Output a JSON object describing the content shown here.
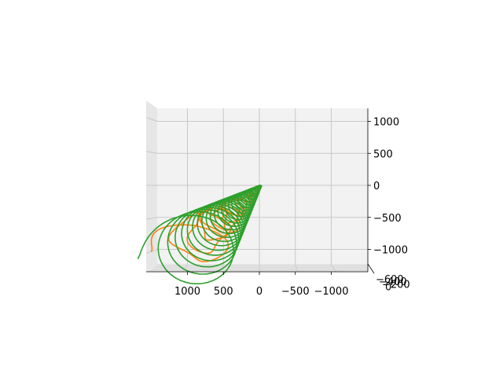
{
  "chart_data": {
    "type": "line",
    "projection": "3d",
    "title": "",
    "xlabel": "",
    "ylabel": "",
    "zlabel": "",
    "grid": true,
    "x_axis": {
      "ticks": [
        {
          "value": 1000,
          "label": "1000"
        },
        {
          "value": 500,
          "label": "500"
        },
        {
          "value": 0,
          "label": "0"
        },
        {
          "value": -500,
          "label": "−500"
        },
        {
          "value": -1000,
          "label": "−1000"
        }
      ],
      "range": [
        -1550,
        1550
      ],
      "inverted": true
    },
    "z_axis": {
      "ticks": [
        {
          "value": 1000,
          "label": "1000"
        },
        {
          "value": 500,
          "label": "500"
        },
        {
          "value": 0,
          "label": "0"
        },
        {
          "value": -500,
          "label": "−500"
        },
        {
          "value": -1000,
          "label": "−1000"
        }
      ],
      "range": [
        -1350,
        1200
      ]
    },
    "y_axis": {
      "ticks": [
        {
          "value": -600,
          "label": "−600"
        },
        {
          "value": -400,
          "label": "−400"
        },
        {
          "value": -200,
          "label": "−200"
        },
        {
          "value": 0,
          "label": "0"
        }
      ],
      "range": [
        -700,
        50
      ]
    },
    "series": [
      {
        "color": "#ff7f0e",
        "kind": "spiral",
        "turns": 14,
        "radius_start": 420,
        "radius_end": 15,
        "center_start": {
          "x": 1080,
          "z": -1040
        },
        "center_end": {
          "x": -20,
          "z": 0
        },
        "wobble": 0.35
      },
      {
        "color": "#2ca02c",
        "kind": "spiral",
        "turns": 26,
        "radius_start": 640,
        "radius_end": 10,
        "center_start": {
          "x": 1050,
          "z": -1150
        },
        "center_end": {
          "x": -25,
          "z": 0
        },
        "wobble": 0
      }
    ]
  }
}
